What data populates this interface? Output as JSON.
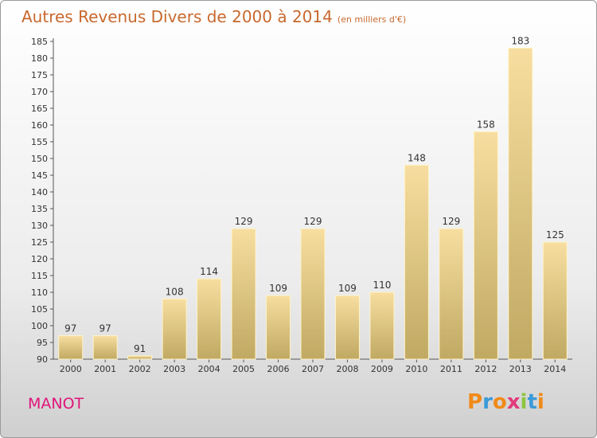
{
  "chart_data": {
    "type": "bar",
    "title": "Autres Revenus Divers de 2000 à 2014",
    "subtitle": "(en milliers d'€)",
    "categories": [
      "2000",
      "2001",
      "2002",
      "2003",
      "2004",
      "2005",
      "2006",
      "2007",
      "2008",
      "2009",
      "2010",
      "2011",
      "2012",
      "2013",
      "2014"
    ],
    "values": [
      97,
      97,
      91,
      108,
      114,
      129,
      109,
      129,
      109,
      110,
      148,
      129,
      158,
      183,
      125
    ],
    "ylim": [
      90,
      185
    ],
    "yticks": [
      90,
      95,
      100,
      105,
      110,
      115,
      120,
      125,
      130,
      135,
      140,
      145,
      150,
      155,
      160,
      165,
      170,
      175,
      180,
      185
    ],
    "grid": false,
    "colors": {
      "bar_top": "#f7dea0",
      "bar_bottom": "#c0a962",
      "bar_edge": "#fff3c8"
    }
  },
  "location": "MANOT",
  "logo": {
    "text": "Proxiti",
    "letters": [
      "P",
      "r",
      "o",
      "x",
      "i",
      "t",
      "i"
    ],
    "colors": [
      "#f08a18",
      "#3a9ad8",
      "#f08a18",
      "#e23a7c",
      "#8cc63f",
      "#3a9ad8",
      "#f08a18"
    ]
  }
}
